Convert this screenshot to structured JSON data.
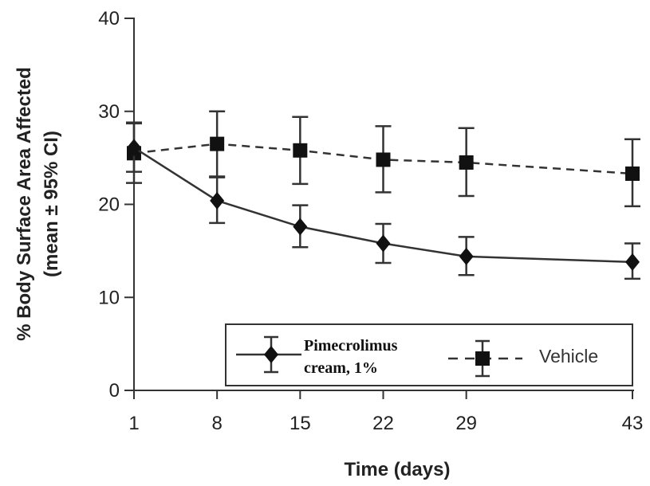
{
  "chart_data": {
    "type": "line",
    "xlabel": "Time (days)",
    "ylabel_line1": "% Body Surface Area Affected",
    "ylabel_line2": "(mean ± 95% CI)",
    "ylim": [
      0,
      40
    ],
    "yticks": [
      "0",
      "10",
      "20",
      "30",
      "40"
    ],
    "xticks": [
      "1",
      "8",
      "15",
      "22",
      "29",
      "43"
    ],
    "x": [
      1,
      8,
      15,
      22,
      29,
      43
    ],
    "grid": false,
    "legend_position": "bottom-right",
    "series": [
      {
        "name": "Pimecrolimus cream, 1%",
        "name_line1": "Pimecrolimus",
        "name_line2": "cream, 1%",
        "marker": "diamond",
        "line_style": "solid",
        "values": [
          26.1,
          20.4,
          17.6,
          15.8,
          14.4,
          13.8
        ],
        "ci_low": [
          23.5,
          18.0,
          15.4,
          13.7,
          12.4,
          12.0
        ],
        "ci_high": [
          28.7,
          22.9,
          19.9,
          17.9,
          16.5,
          15.8
        ]
      },
      {
        "name": "Vehicle",
        "marker": "square",
        "line_style": "dashed",
        "values": [
          25.5,
          26.5,
          25.8,
          24.8,
          24.5,
          23.3
        ],
        "ci_low": [
          22.3,
          23.0,
          22.2,
          21.3,
          20.9,
          19.8
        ],
        "ci_high": [
          28.8,
          30.0,
          29.4,
          28.4,
          28.2,
          27.0
        ]
      }
    ]
  }
}
